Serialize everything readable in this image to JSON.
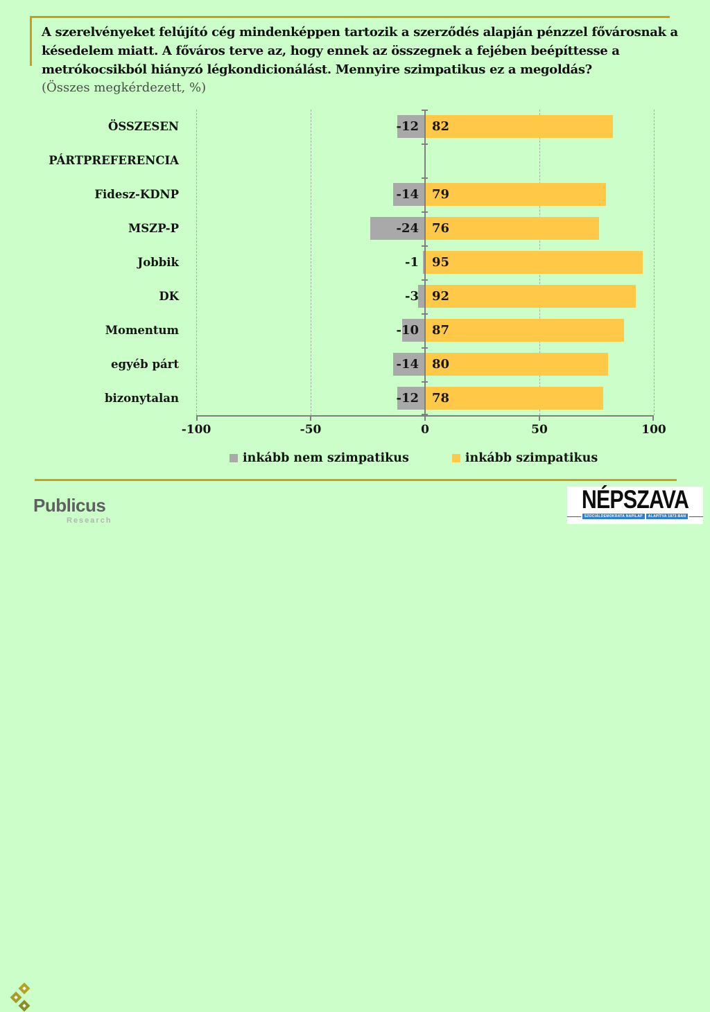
{
  "page": {
    "background": "#CBFEC9",
    "accent_gold": "#CF9B18"
  },
  "title": {
    "lines": [
      "A szerelvényeket felújító cég mindenképpen tartozik a szerződés alapján pénzzel fővárosnak a",
      "késedelem miatt. A főváros terve az, hogy ennek az összegnek a fejében beépíttesse a",
      "metrókocsikból hiányzó légkondicionálást. Mennyire szimpatikus ez a megoldás?"
    ],
    "subtitle": "(Összes megkérdezett, %)"
  },
  "chart_data": {
    "type": "bar",
    "orientation": "horizontal-diverging",
    "categories": [
      "ÖSSZESEN",
      "PÁRTPREFERENCIA",
      "Fidesz-KDNP",
      "MSZP-P",
      "Jobbik",
      "DK",
      "Momentum",
      "egyéb párt",
      "bizonytalan"
    ],
    "series": [
      {
        "name": "inkább nem szimpatikus",
        "color": "#A9A9A9",
        "values": [
          -12,
          null,
          -14,
          -24,
          -1,
          -3,
          -10,
          -14,
          -12
        ]
      },
      {
        "name": "inkább szimpatikus",
        "color": "#FFC947",
        "values": [
          82,
          null,
          79,
          76,
          95,
          92,
          87,
          80,
          78
        ]
      }
    ],
    "xlim": [
      -100,
      100
    ],
    "x_ticks": [
      -100,
      -50,
      0,
      50,
      100
    ],
    "grid": "dashed-vertical-at--100--50-50-100",
    "legend_position": "bottom-center",
    "value_labels": "inside-base"
  },
  "footer": {
    "publicus": {
      "name": "Publicus",
      "sub": "Research"
    },
    "nepszava": {
      "name": "NÉPSZAVA",
      "tag1": "SZOCIÁLDEMOKRATA NAPILAP",
      "tag2": "ALAPÍTVA 1873-BAN"
    }
  }
}
